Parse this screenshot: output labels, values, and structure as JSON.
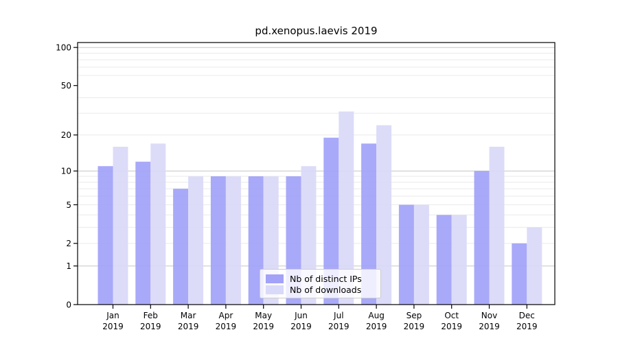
{
  "chart_data": {
    "type": "bar",
    "title": "pd.xenopus.laevis 2019",
    "categories": [
      "Jan",
      "Feb",
      "Mar",
      "Apr",
      "May",
      "Jun",
      "Jul",
      "Aug",
      "Sep",
      "Oct",
      "Nov",
      "Dec"
    ],
    "xtick_year": "2019",
    "series": [
      {
        "name": "Nb of distinct IPs",
        "color": "#a2a2f8",
        "values": [
          11,
          12,
          7,
          9,
          9,
          9,
          19,
          17,
          5,
          4,
          10,
          2
        ]
      },
      {
        "name": "Nb of downloads",
        "color": "#d9d9f9",
        "values": [
          16,
          17,
          9,
          9,
          9,
          11,
          31,
          24,
          5,
          4,
          16,
          3
        ]
      }
    ],
    "yticks": [
      0,
      1,
      2,
      5,
      10,
      20,
      50,
      100
    ],
    "ylim": [
      0,
      111
    ],
    "yscale": "log(1+x)",
    "grid": "both",
    "grid_major_values": [
      1,
      10,
      100
    ],
    "grid_minor_values": [
      2,
      3,
      4,
      5,
      6,
      7,
      8,
      9,
      20,
      30,
      40,
      60,
      70,
      80,
      90
    ],
    "legend_position": "lower-center",
    "colors": {
      "grid_major": "#c6c6c6",
      "grid_minor": "#eaeaea",
      "axis": "#000000",
      "text": "#000000"
    }
  }
}
